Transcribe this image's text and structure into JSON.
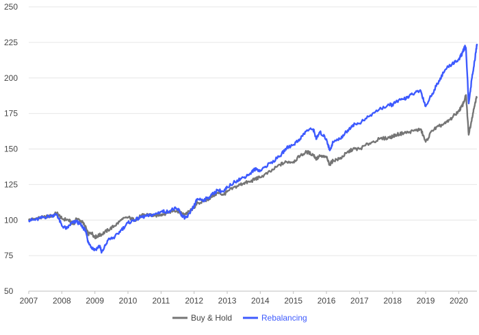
{
  "chart_data": {
    "type": "line",
    "title": "",
    "xlabel": "",
    "ylabel": "",
    "xlim": [
      2007,
      2020.55
    ],
    "ylim": [
      50,
      250
    ],
    "x_ticks": [
      "2007",
      "2008",
      "2009",
      "2010",
      "2011",
      "2012",
      "2013",
      "2014",
      "2015",
      "2016",
      "2017",
      "2018",
      "2019",
      "2020"
    ],
    "y_ticks": [
      "50",
      "75",
      "100",
      "125",
      "150",
      "175",
      "200",
      "225",
      "250"
    ],
    "grid": "horizontal",
    "legend_position": "bottom",
    "series": [
      {
        "name": "Buy & Hold",
        "color": "#757575",
        "x": [
          2007.0,
          2007.2,
          2007.45,
          2007.7,
          2007.85,
          2008.0,
          2008.2,
          2008.35,
          2008.45,
          2008.6,
          2008.7,
          2008.75,
          2008.8,
          2008.9,
          2009.0,
          2009.1,
          2009.2,
          2009.4,
          2009.6,
          2009.8,
          2010.0,
          2010.2,
          2010.4,
          2010.6,
          2010.8,
          2011.0,
          2011.2,
          2011.4,
          2011.55,
          2011.65,
          2011.8,
          2012.0,
          2012.1,
          2012.3,
          2012.5,
          2012.7,
          2012.9,
          2013.0,
          2013.3,
          2013.5,
          2013.7,
          2013.85,
          2014.0,
          2014.3,
          2014.6,
          2014.8,
          2015.0,
          2015.2,
          2015.4,
          2015.6,
          2015.7,
          2015.8,
          2016.0,
          2016.1,
          2016.2,
          2016.4,
          2016.6,
          2016.8,
          2017.0,
          2017.3,
          2017.6,
          2017.9,
          2018.0,
          2018.1,
          2018.3,
          2018.5,
          2018.7,
          2018.85,
          2019.0,
          2019.2,
          2019.4,
          2019.6,
          2019.8,
          2020.0,
          2020.1,
          2020.18,
          2020.22,
          2020.3,
          2020.4,
          2020.5,
          2020.55
        ],
        "values": [
          100,
          101,
          102,
          103,
          105,
          101,
          100,
          97,
          101,
          99,
          96,
          93,
          90,
          91,
          88,
          89,
          90,
          93,
          96,
          100,
          102,
          100,
          103,
          104,
          103,
          104,
          105,
          107,
          106,
          104,
          105,
          109,
          112,
          113,
          116,
          119,
          118,
          120,
          124,
          126,
          127,
          129,
          130,
          134,
          139,
          141,
          141,
          145,
          148,
          146,
          143,
          145,
          144,
          139,
          142,
          143,
          147,
          150,
          150,
          154,
          157,
          158,
          159,
          160,
          161,
          162,
          163,
          164,
          155,
          163,
          166,
          168,
          172,
          177,
          180,
          185,
          188,
          160,
          172,
          183,
          187
        ]
      },
      {
        "name": "Rebalancing",
        "color": "#3d5afe",
        "x": [
          2007.0,
          2007.2,
          2007.45,
          2007.7,
          2007.85,
          2008.0,
          2008.15,
          2008.3,
          2008.45,
          2008.6,
          2008.7,
          2008.75,
          2008.8,
          2008.9,
          2009.0,
          2009.15,
          2009.2,
          2009.4,
          2009.6,
          2009.8,
          2010.0,
          2010.2,
          2010.4,
          2010.6,
          2010.8,
          2011.0,
          2011.2,
          2011.4,
          2011.55,
          2011.65,
          2011.8,
          2012.0,
          2012.1,
          2012.3,
          2012.5,
          2012.7,
          2012.9,
          2013.0,
          2013.3,
          2013.5,
          2013.7,
          2013.85,
          2014.0,
          2014.3,
          2014.6,
          2014.8,
          2015.0,
          2015.2,
          2015.4,
          2015.6,
          2015.7,
          2015.8,
          2016.0,
          2016.1,
          2016.2,
          2016.4,
          2016.6,
          2016.8,
          2017.0,
          2017.3,
          2017.6,
          2017.9,
          2018.0,
          2018.1,
          2018.3,
          2018.5,
          2018.7,
          2018.85,
          2019.0,
          2019.2,
          2019.4,
          2019.6,
          2019.8,
          2020.0,
          2020.1,
          2020.18,
          2020.22,
          2020.3,
          2020.4,
          2020.5,
          2020.55
        ],
        "values": [
          100,
          100,
          102,
          103,
          104,
          96,
          94,
          98,
          99,
          96,
          93,
          90,
          84,
          81,
          79,
          82,
          77,
          86,
          88,
          93,
          98,
          100,
          102,
          103,
          104,
          106,
          106,
          108,
          107,
          102,
          102,
          110,
          115,
          114,
          117,
          121,
          120,
          123,
          128,
          130,
          133,
          136,
          135,
          140,
          145,
          151,
          153,
          157,
          163,
          164,
          157,
          162,
          157,
          149,
          155,
          157,
          162,
          167,
          168,
          173,
          178,
          181,
          181,
          183,
          185,
          187,
          190,
          191,
          180,
          189,
          198,
          206,
          210,
          213,
          217,
          222,
          220,
          182,
          200,
          215,
          224
        ]
      }
    ]
  }
}
